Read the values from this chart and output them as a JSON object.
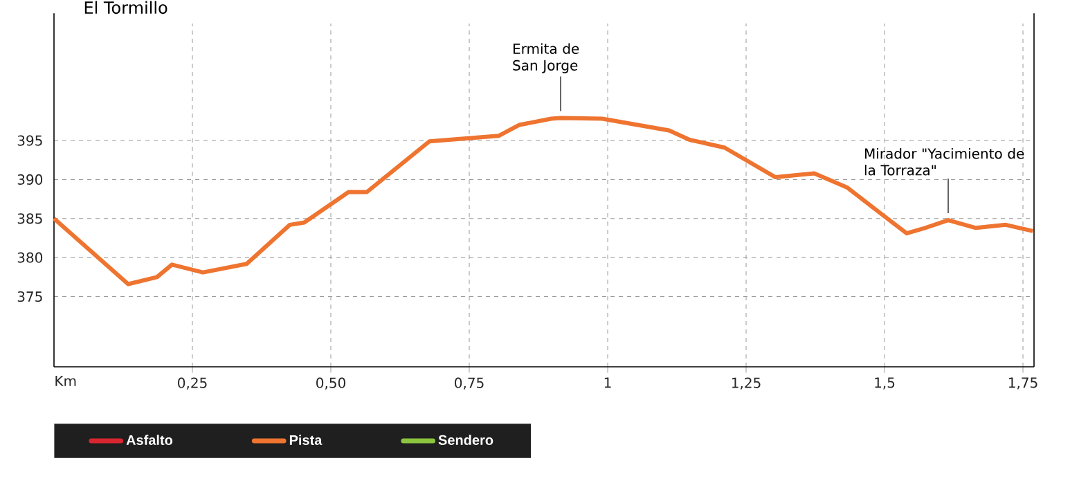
{
  "chart_data": {
    "type": "line",
    "title": "El Tormillo",
    "xlabel": "Km",
    "x": [
      0,
      0.134,
      0.186,
      0.213,
      0.269,
      0.348,
      0.426,
      0.452,
      0.532,
      0.565,
      0.678,
      0.803,
      0.84,
      0.898,
      0.915,
      0.99,
      1.111,
      1.148,
      1.211,
      1.303,
      1.373,
      1.432,
      1.54,
      1.569,
      1.615,
      1.665,
      1.719,
      1.768
    ],
    "series": [
      {
        "name": "Asfalto",
        "color": "#d7262f",
        "values": [
          null,
          null,
          null,
          null,
          null,
          null,
          null,
          null,
          null,
          null,
          null,
          null,
          null,
          null,
          null,
          null,
          null,
          null,
          null,
          null,
          null,
          null,
          null,
          null,
          null,
          null,
          null,
          null
        ]
      },
      {
        "name": "Pista",
        "color": "#ee7430",
        "values": [
          385,
          376.6,
          377.5,
          379.1,
          378.1,
          379.2,
          384.2,
          384.5,
          388.4,
          388.4,
          394.9,
          395.6,
          397,
          397.8,
          397.9,
          397.8,
          396.3,
          395.1,
          394.1,
          390.3,
          390.8,
          389,
          383.1,
          383.7,
          384.8,
          383.8,
          384.2,
          383.4
        ]
      },
      {
        "name": "Sendero",
        "color": "#8bc53f",
        "values": [
          null,
          null,
          null,
          null,
          null,
          null,
          null,
          null,
          null,
          null,
          null,
          null,
          null,
          null,
          null,
          null,
          null,
          null,
          null,
          null,
          null,
          null,
          null,
          null,
          null,
          null,
          null,
          null
        ]
      }
    ],
    "xlim": [
      0,
      1.77
    ],
    "ylim": [
      366,
      410
    ],
    "xticks": [
      {
        "value": 0.25,
        "label": "0,25"
      },
      {
        "value": 0.5,
        "label": "0,50"
      },
      {
        "value": 0.75,
        "label": "0,75"
      },
      {
        "value": 1,
        "label": "1"
      },
      {
        "value": 1.25,
        "label": "1,25"
      },
      {
        "value": 1.5,
        "label": "1,5"
      },
      {
        "value": 1.75,
        "label": "1,75"
      }
    ],
    "yticks": [
      375,
      380,
      385,
      390,
      395
    ],
    "grid": true,
    "legend": "bottom",
    "marker": "none",
    "line_style": "solid",
    "annotations": [
      {
        "text": "Ermita de San Jorge",
        "x": 0.915,
        "y": 397.9
      },
      {
        "text": "Mirador \"Yacimiento de la Torraza\"",
        "x": 1.615,
        "y": 384.8
      }
    ]
  }
}
